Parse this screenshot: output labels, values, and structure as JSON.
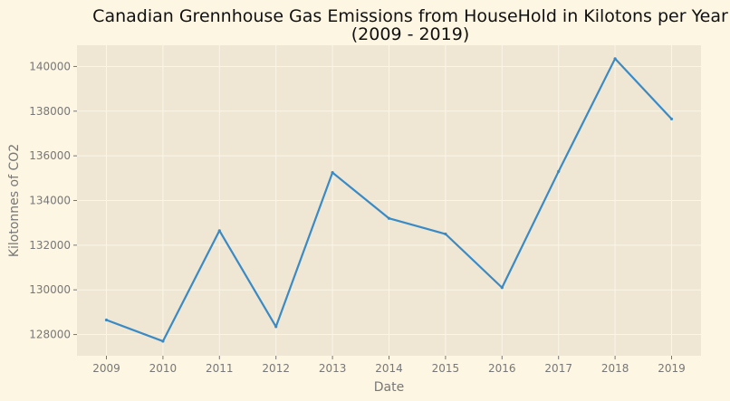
{
  "chart_data": {
    "type": "line",
    "title_lines": [
      "Canadian Grennhouse Gas Emissions from HouseHold in Kilotons per Year",
      "(2009 - 2019)"
    ],
    "xlabel": "Date",
    "ylabel": "Kilotonnes of CO2",
    "x": [
      "2009",
      "2010",
      "2011",
      "2012",
      "2013",
      "2014",
      "2015",
      "2016",
      "2017",
      "2018",
      "2019"
    ],
    "series": [
      {
        "values": [
          128650,
          127700,
          132650,
          128350,
          135250,
          133200,
          132500,
          130100,
          135300,
          140350,
          137650
        ]
      }
    ],
    "yticks": [
      128000,
      130000,
      132000,
      134000,
      136000,
      138000,
      140000
    ],
    "ylim": [
      127050,
      140950
    ],
    "grid": true,
    "colors": {
      "figure_background": "#fdf6e3",
      "plot_background": "#efe7d4",
      "grid": "#fbf5e8",
      "line": "#3a8ac5"
    }
  }
}
